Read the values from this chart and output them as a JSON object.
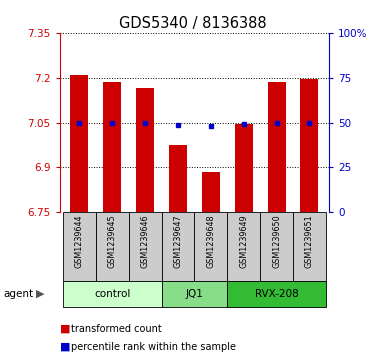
{
  "title": "GDS5340 / 8136388",
  "samples": [
    "GSM1239644",
    "GSM1239645",
    "GSM1239646",
    "GSM1239647",
    "GSM1239648",
    "GSM1239649",
    "GSM1239650",
    "GSM1239651"
  ],
  "bar_tops": [
    7.21,
    7.185,
    7.165,
    6.975,
    6.885,
    7.045,
    7.185,
    7.195
  ],
  "bar_bottom": 6.75,
  "blue_dots": [
    7.05,
    7.047,
    7.047,
    7.042,
    7.038,
    7.044,
    7.05,
    7.05
  ],
  "ylim_left": [
    6.75,
    7.35
  ],
  "ylim_right": [
    0,
    100
  ],
  "yticks_left": [
    6.75,
    6.9,
    7.05,
    7.2,
    7.35
  ],
  "yticks_right": [
    0,
    25,
    50,
    75,
    100
  ],
  "ytick_labels_left": [
    "6.75",
    "6.9",
    "7.05",
    "7.2",
    "7.35"
  ],
  "ytick_labels_right": [
    "0",
    "25",
    "50",
    "75",
    "100%"
  ],
  "bar_color": "#cc0000",
  "dot_color": "#0000cc",
  "group_labels": [
    "control",
    "JQ1",
    "RVX-208"
  ],
  "group_ranges": [
    [
      0,
      2
    ],
    [
      3,
      4
    ],
    [
      5,
      7
    ]
  ],
  "group_colors": [
    "#ccffcc",
    "#88dd88",
    "#33bb33"
  ],
  "agent_label": "agent",
  "legend_items": [
    "transformed count",
    "percentile rank within the sample"
  ],
  "bg_color": "#cccccc",
  "plot_bg": "#ffffff",
  "left_color": "#cc0000",
  "right_color": "#0000cc"
}
